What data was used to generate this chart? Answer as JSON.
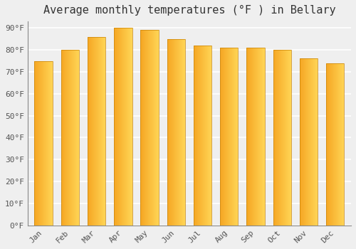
{
  "title": "Average monthly temperatures (°F ) in Bellary",
  "months": [
    "Jan",
    "Feb",
    "Mar",
    "Apr",
    "May",
    "Jun",
    "Jul",
    "Aug",
    "Sep",
    "Oct",
    "Nov",
    "Dec"
  ],
  "values": [
    75,
    80,
    86,
    90,
    89,
    85,
    82,
    81,
    81,
    80,
    76,
    74
  ],
  "grad_color_left": "#F5A623",
  "grad_color_right": "#FFD060",
  "bar_edge_color": "#C8840A",
  "ylim": [
    0,
    93
  ],
  "yticks": [
    0,
    10,
    20,
    30,
    40,
    50,
    60,
    70,
    80,
    90
  ],
  "ytick_labels": [
    "0°F",
    "10°F",
    "20°F",
    "30°F",
    "40°F",
    "50°F",
    "60°F",
    "70°F",
    "80°F",
    "90°F"
  ],
  "background_color": "#efefef",
  "grid_color": "#ffffff",
  "title_fontsize": 11,
  "tick_fontsize": 8,
  "bar_width": 0.68
}
